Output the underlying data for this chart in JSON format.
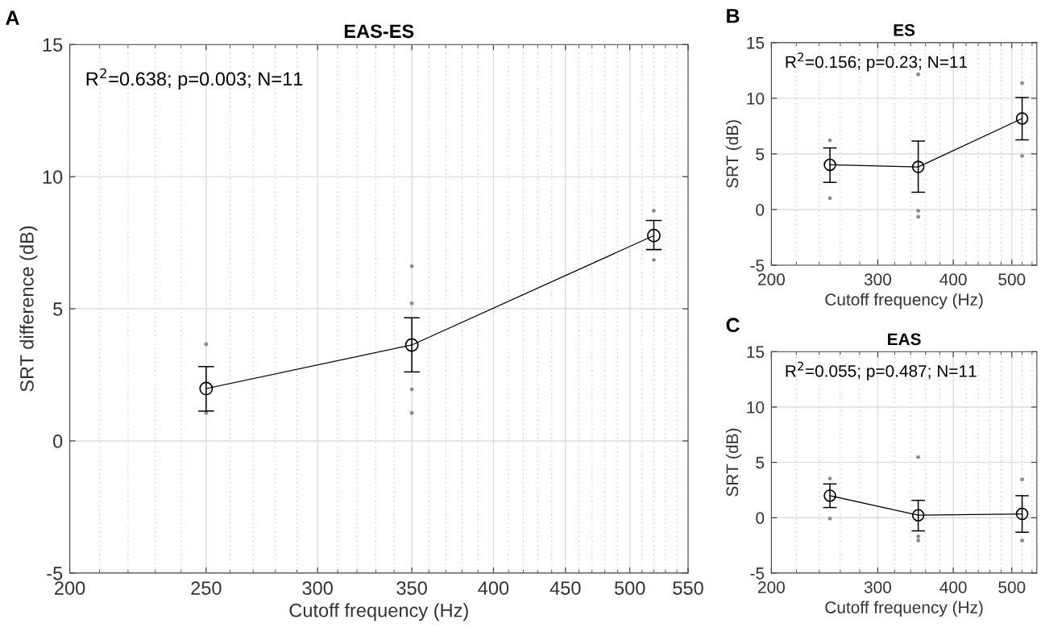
{
  "chart_data": [
    {
      "type": "line",
      "title": "EAS-ES",
      "xlabel": "Cutoff frequency (Hz)",
      "ylabel": "SRT difference (dB)",
      "log": "x",
      "grid": true,
      "marker": "circle",
      "line_style": "solid",
      "xlim": [
        200,
        550
      ],
      "xticks": [
        200,
        250,
        300,
        350,
        400,
        450,
        500,
        550
      ],
      "ylim": [
        -5,
        15
      ],
      "yticks": [
        -5,
        0,
        5,
        10,
        15
      ],
      "annotations": [
        "A",
        "R$^{2}$=0.638; p=0.003; N=11"
      ],
      "series": [
        {
          "type": "scatter",
          "color": "#8c8c8c",
          "x": [
            250,
            250,
            350,
            350,
            350,
            350,
            520,
            520
          ],
          "values": [
            3.66,
            1.06,
            6.61,
            5.21,
            1.95,
            1.06,
            8.71,
            6.85
          ]
        },
        {
          "color": "#000000",
          "x": [
            250,
            350,
            520
          ],
          "values": [
            1.98,
            3.63,
            7.77
          ],
          "errors": [
            [
              1.13,
              2.81
            ],
            [
              2.61,
              4.66
            ],
            [
              7.24,
              8.34
            ]
          ]
        }
      ]
    },
    {
      "type": "line",
      "title": "ES",
      "xlabel": "Cutoff frequency (Hz)",
      "ylabel": "SRT (dB)",
      "log": "x",
      "grid": true,
      "marker": "circle",
      "line_style": "solid",
      "xlim": [
        200,
        550
      ],
      "xticks": [
        200,
        300,
        400,
        500
      ],
      "ylim": [
        -5,
        15
      ],
      "yticks": [
        -5,
        0,
        5,
        10,
        15
      ],
      "annotations": [
        "B",
        "R$^{2}$=0.156; p=0.23; N=11"
      ],
      "series": [
        {
          "type": "scatter",
          "color": "#8c8c8c",
          "x": [
            250,
            250,
            350,
            350,
            350,
            520,
            520
          ],
          "values": [
            6.22,
            1.02,
            12.15,
            -0.1,
            -0.65,
            11.36,
            4.82
          ]
        },
        {
          "color": "#000000",
          "x": [
            250,
            350,
            520
          ],
          "values": [
            4.02,
            3.83,
            8.18
          ],
          "errors": [
            [
              2.45,
              5.54
            ],
            [
              1.55,
              6.15
            ],
            [
              6.27,
              10.07
            ]
          ]
        }
      ]
    },
    {
      "type": "line",
      "title": "EAS",
      "xlabel": "Cutoff frequency (Hz)",
      "ylabel": "SRT (dB)",
      "log": "x",
      "grid": true,
      "marker": "circle",
      "line_style": "solid",
      "xlim": [
        200,
        550
      ],
      "xticks": [
        200,
        300,
        400,
        500
      ],
      "ylim": [
        -5,
        15
      ],
      "yticks": [
        -5,
        0,
        5,
        10,
        15
      ],
      "annotations": [
        "C",
        "R$^{2}$=0.055; p=0.487; N=11"
      ],
      "series": [
        {
          "type": "scatter",
          "color": "#8c8c8c",
          "x": [
            250,
            250,
            350,
            350,
            350,
            520,
            520
          ],
          "values": [
            3.54,
            -0.07,
            5.47,
            -1.69,
            -2.06,
            3.46,
            -2.06
          ]
        },
        {
          "color": "#000000",
          "x": [
            250,
            350,
            520
          ],
          "values": [
            1.99,
            0.22,
            0.34
          ],
          "errors": [
            [
              0.92,
              3.05
            ],
            [
              -1.19,
              1.57
            ],
            [
              -1.31,
              1.99
            ]
          ]
        }
      ]
    }
  ]
}
